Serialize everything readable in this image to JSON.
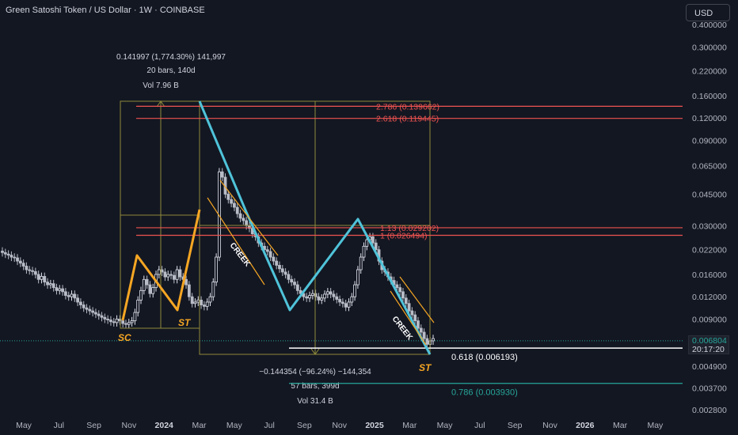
{
  "header": {
    "title": "Green Satoshi Token / US Dollar · 1W · COINBASE",
    "currency": "USD"
  },
  "price_tag": {
    "price": "0.006804",
    "countdown": "20:17:20"
  },
  "colors": {
    "background": "#131722",
    "up": "#26a69a",
    "down": "#ef5350",
    "candle": "#e0e3eb",
    "pattern_cyan": "#4fc3d9",
    "pattern_orange": "#f5a623",
    "box": "#8f8a3a",
    "fib_red": "#ef5350",
    "fib_white": "#ffffff",
    "fib_teal": "#26a69a"
  },
  "chart_data": {
    "type": "candlestick",
    "y_scale": "log",
    "ylim": [
      0.0025,
      0.45
    ],
    "y_ticks": [
      "0.400000",
      "0.300000",
      "0.220000",
      "0.160000",
      "0.120000",
      "0.090000",
      "0.065000",
      "0.045000",
      "0.030000",
      "0.022000",
      "0.016000",
      "0.012000",
      "0.009000",
      "0.004900",
      "0.003700",
      "0.002800"
    ],
    "x_labels": [
      "May",
      "Jul",
      "Sep",
      "Nov",
      "2024",
      "Mar",
      "May",
      "Jul",
      "Sep",
      "Nov",
      "2025",
      "Mar",
      "May",
      "Jul",
      "Sep",
      "Nov",
      "2026",
      "Mar",
      "May"
    ],
    "series": [
      {
        "name": "price",
        "values": [
          0.0212,
          0.0208,
          0.0205,
          0.02,
          0.0198,
          0.019,
          0.0185,
          0.0178,
          0.017,
          0.0168,
          0.0166,
          0.016,
          0.015,
          0.0156,
          0.0145,
          0.014,
          0.0142,
          0.0135,
          0.013,
          0.0133,
          0.0128,
          0.0122,
          0.012,
          0.0124,
          0.0118,
          0.0112,
          0.0108,
          0.0104,
          0.0102,
          0.01,
          0.0098,
          0.0096,
          0.0094,
          0.0092,
          0.009,
          0.0089,
          0.0087,
          0.0086,
          0.009,
          0.0088,
          0.0085,
          0.0084,
          0.0086,
          0.0088,
          0.0098,
          0.0115,
          0.013,
          0.015,
          0.014,
          0.0125,
          0.0135,
          0.016,
          0.017,
          0.0165,
          0.0155,
          0.016,
          0.0158,
          0.015,
          0.017,
          0.0155,
          0.015,
          0.014,
          0.012,
          0.011,
          0.0112,
          0.0115,
          0.0108,
          0.0106,
          0.0112,
          0.012,
          0.0145,
          0.02,
          0.06,
          0.056,
          0.045,
          0.042,
          0.04,
          0.038,
          0.035,
          0.033,
          0.032,
          0.03,
          0.029,
          0.027,
          0.026,
          0.024,
          0.023,
          0.022,
          0.0215,
          0.02,
          0.019,
          0.018,
          0.0172,
          0.0165,
          0.016,
          0.015,
          0.0145,
          0.014,
          0.013,
          0.0125,
          0.012,
          0.0118,
          0.0122,
          0.0125,
          0.012,
          0.0115,
          0.0118,
          0.0124,
          0.0128,
          0.0124,
          0.012,
          0.0116,
          0.0112,
          0.011,
          0.0105,
          0.0112,
          0.012,
          0.014,
          0.017,
          0.02,
          0.023,
          0.025,
          0.026,
          0.024,
          0.022,
          0.019,
          0.017,
          0.0165,
          0.0155,
          0.0148,
          0.014,
          0.0135,
          0.0128,
          0.0118,
          0.011,
          0.01,
          0.0095,
          0.0088,
          0.008,
          0.0076,
          0.007,
          0.0065,
          0.0068,
          0.007
        ]
      }
    ],
    "annotations": {
      "measure_up": {
        "line1": "0.141997 (1,774.30%) 141,997",
        "line2": "20 bars, 140d",
        "line3": "Vol 7.96 B"
      },
      "measure_down": {
        "line1": "−0.144354 (−96.24%) −144,354",
        "line2": "57 bars, 399d",
        "line3": "Vol 31.4 B"
      },
      "fib_levels": [
        {
          "label": "2.786 (0.139662)",
          "value": 0.139662,
          "color": "fib_red"
        },
        {
          "label": "2.618 (0.119445)",
          "value": 0.119445,
          "color": "fib_red"
        },
        {
          "label": "1.13 (0.029202)",
          "value": 0.029202,
          "color": "fib_red"
        },
        {
          "label": "1 (0.026494)",
          "value": 0.026494,
          "color": "fib_red"
        },
        {
          "label": "0.618 (0.006193)",
          "value": 0.006193,
          "color": "fib_white"
        },
        {
          "label": "0.786 (0.003930)",
          "value": 0.00393,
          "color": "fib_teal"
        }
      ],
      "markers": [
        "SC",
        "ST",
        "ST"
      ],
      "creek_labels": [
        "CREEK",
        "CREEK"
      ]
    }
  }
}
